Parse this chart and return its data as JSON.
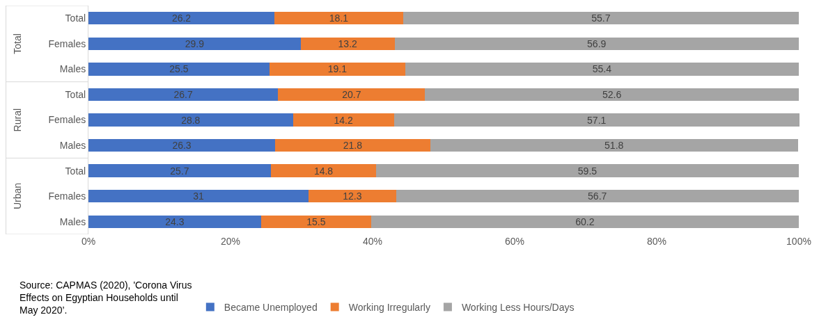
{
  "chart_data": {
    "type": "bar",
    "orientation": "horizontal",
    "stacked": true,
    "data_labels": true,
    "grid": false,
    "legend": "bottom",
    "categories": [
      "Total",
      "Females",
      "Males",
      "Total",
      "Females",
      "Males",
      "Total",
      "Females",
      "Males"
    ],
    "series": [
      {
        "name": "Became Unemployed",
        "color": "#4472c4",
        "values": [
          26.2,
          29.9,
          25.5,
          26.7,
          28.8,
          26.3,
          25.7,
          31,
          24.3
        ]
      },
      {
        "name": "Working Irregularly",
        "color": "#ed7d31",
        "values": [
          18.1,
          13.2,
          19.1,
          20.7,
          14.2,
          21.8,
          14.8,
          12.3,
          15.5
        ]
      },
      {
        "name": "Working Less Hours/Days",
        "color": "#a5a5a5",
        "values": [
          55.7,
          56.9,
          55.4,
          52.6,
          57.1,
          51.8,
          59.5,
          56.7,
          60.2
        ]
      }
    ],
    "xlim": [
      0,
      100.1
    ],
    "xticks": [
      {
        "value": 0,
        "label": "0%"
      },
      {
        "value": 20,
        "label": "20%"
      },
      {
        "value": 40,
        "label": "40%"
      },
      {
        "value": 60,
        "label": "60%"
      },
      {
        "value": 80,
        "label": "80%"
      },
      {
        "value": 100,
        "label": "100%"
      }
    ],
    "annotations": [
      "Total",
      "Rural",
      "Urban",
      "Source: CAPMAS (2020), 'Corona Virus Effects on Egyptian Households until May 2020’."
    ]
  }
}
